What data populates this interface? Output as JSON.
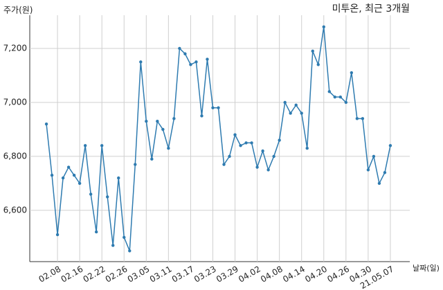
{
  "chart_data": {
    "type": "line",
    "title": "미투온, 최근 3개월",
    "y_label": "주가(원)",
    "x_label": "날짜(일)",
    "categories": [
      null,
      null,
      "02.08",
      null,
      null,
      null,
      "02.16",
      null,
      null,
      null,
      "02.22",
      null,
      null,
      null,
      "02.26",
      null,
      null,
      null,
      "03.05",
      null,
      null,
      null,
      "03.11",
      null,
      null,
      null,
      "03.17",
      null,
      null,
      null,
      "03.23",
      null,
      null,
      null,
      "03.29",
      null,
      null,
      null,
      "04.02",
      null,
      null,
      null,
      "04.08",
      null,
      null,
      null,
      "04.14",
      null,
      null,
      null,
      "04.20",
      null,
      null,
      null,
      "04.26",
      null,
      null,
      null,
      "04.30",
      null,
      null,
      null,
      "21.05.07"
    ],
    "values": [
      6920,
      6730,
      6510,
      6720,
      6760,
      6730,
      6700,
      6840,
      6660,
      6520,
      6840,
      6650,
      6470,
      6720,
      6500,
      6450,
      6770,
      7150,
      6930,
      6790,
      6930,
      6900,
      6830,
      6940,
      7200,
      7180,
      7140,
      7150,
      6950,
      7160,
      6980,
      6980,
      6770,
      6800,
      6880,
      6840,
      6850,
      6850,
      6760,
      6820,
      6750,
      6800,
      6860,
      7000,
      6960,
      6990,
      6960,
      6830,
      7190,
      7140,
      7280,
      7040,
      7020,
      7020,
      7000,
      7110,
      6940,
      6940,
      6750,
      6800,
      6700,
      6740,
      6840
    ],
    "color": "#2e7bb0",
    "ylim": [
      6410,
      7323
    ],
    "yticks": [
      {
        "value": 6600,
        "label": "6,600"
      },
      {
        "value": 6800,
        "label": "6,800"
      },
      {
        "value": 7000,
        "label": "7,000"
      },
      {
        "value": 7200,
        "label": "7,200"
      }
    ],
    "grid": true
  }
}
